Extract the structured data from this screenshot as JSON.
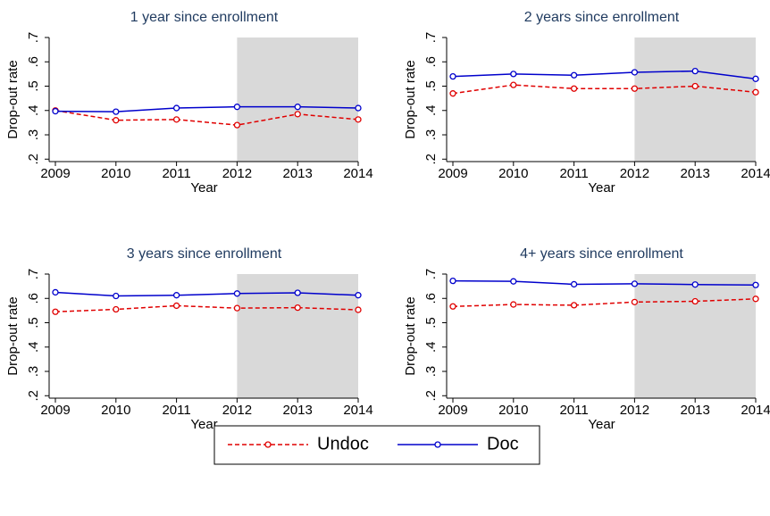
{
  "chart_data": [
    {
      "type": "line",
      "title": "1 year since enrollment",
      "xlabel": "Year",
      "ylabel": "Drop-out rate",
      "x": [
        2009,
        2010,
        2011,
        2012,
        2013,
        2014
      ],
      "xlim": [
        2009,
        2014
      ],
      "xticks": [
        2009,
        2010,
        2011,
        2012,
        2013,
        2014
      ],
      "ylim": [
        0.19,
        0.7
      ],
      "yticks": [
        {
          "value": 0.2,
          "label": ".2"
        },
        {
          "value": 0.3,
          "label": ".3"
        },
        {
          "value": 0.4,
          "label": ".4"
        },
        {
          "value": 0.5,
          "label": ".5"
        },
        {
          "value": 0.6,
          "label": ".6"
        },
        {
          "value": 0.7,
          "label": ".7"
        }
      ],
      "shade": [
        2012,
        2014
      ],
      "shade_color": "#d9d9d9",
      "series": [
        {
          "name": "Undoc",
          "color": "#e00000",
          "dashed": true,
          "values": [
            0.4,
            0.36,
            0.363,
            0.34,
            0.385,
            0.363
          ]
        },
        {
          "name": "Doc",
          "color": "#0000cc",
          "dashed": false,
          "values": [
            0.397,
            0.395,
            0.41,
            0.415,
            0.415,
            0.41
          ]
        }
      ]
    },
    {
      "type": "line",
      "title": "2 years since enrollment",
      "xlabel": "Year",
      "ylabel": "Drop-out rate",
      "x": [
        2009,
        2010,
        2011,
        2012,
        2013,
        2014
      ],
      "xlim": [
        2009,
        2014
      ],
      "xticks": [
        2009,
        2010,
        2011,
        2012,
        2013,
        2014
      ],
      "ylim": [
        0.19,
        0.7
      ],
      "yticks": [
        {
          "value": 0.2,
          "label": ".2"
        },
        {
          "value": 0.3,
          "label": ".3"
        },
        {
          "value": 0.4,
          "label": ".4"
        },
        {
          "value": 0.5,
          "label": ".5"
        },
        {
          "value": 0.6,
          "label": ".6"
        },
        {
          "value": 0.7,
          "label": ".7"
        }
      ],
      "shade": [
        2012,
        2014
      ],
      "shade_color": "#d9d9d9",
      "series": [
        {
          "name": "Undoc",
          "color": "#e00000",
          "dashed": true,
          "values": [
            0.47,
            0.505,
            0.49,
            0.49,
            0.5,
            0.475
          ]
        },
        {
          "name": "Doc",
          "color": "#0000cc",
          "dashed": false,
          "values": [
            0.54,
            0.55,
            0.545,
            0.557,
            0.562,
            0.53
          ]
        }
      ]
    },
    {
      "type": "line",
      "title": "3 years since enrollment",
      "xlabel": "Year",
      "ylabel": "Drop-out rate",
      "x": [
        2009,
        2010,
        2011,
        2012,
        2013,
        2014
      ],
      "xlim": [
        2009,
        2014
      ],
      "xticks": [
        2009,
        2010,
        2011,
        2012,
        2013,
        2014
      ],
      "ylim": [
        0.19,
        0.7
      ],
      "yticks": [
        {
          "value": 0.2,
          "label": ".2"
        },
        {
          "value": 0.3,
          "label": ".3"
        },
        {
          "value": 0.4,
          "label": ".4"
        },
        {
          "value": 0.5,
          "label": ".5"
        },
        {
          "value": 0.6,
          "label": ".6"
        },
        {
          "value": 0.7,
          "label": ".7"
        }
      ],
      "shade": [
        2012,
        2014
      ],
      "shade_color": "#d9d9d9",
      "series": [
        {
          "name": "Undoc",
          "color": "#e00000",
          "dashed": true,
          "values": [
            0.545,
            0.555,
            0.57,
            0.56,
            0.562,
            0.553
          ]
        },
        {
          "name": "Doc",
          "color": "#0000cc",
          "dashed": false,
          "values": [
            0.625,
            0.61,
            0.613,
            0.62,
            0.623,
            0.613
          ]
        }
      ]
    },
    {
      "type": "line",
      "title": "4+ years since enrollment",
      "xlabel": "Year",
      "ylabel": "Drop-out rate",
      "x": [
        2009,
        2010,
        2011,
        2012,
        2013,
        2014
      ],
      "xlim": [
        2009,
        2014
      ],
      "xticks": [
        2009,
        2010,
        2011,
        2012,
        2013,
        2014
      ],
      "ylim": [
        0.19,
        0.7
      ],
      "yticks": [
        {
          "value": 0.2,
          "label": ".2"
        },
        {
          "value": 0.3,
          "label": ".3"
        },
        {
          "value": 0.4,
          "label": ".4"
        },
        {
          "value": 0.5,
          "label": ".5"
        },
        {
          "value": 0.6,
          "label": ".6"
        },
        {
          "value": 0.7,
          "label": ".7"
        }
      ],
      "shade": [
        2012,
        2014
      ],
      "shade_color": "#d9d9d9",
      "series": [
        {
          "name": "Undoc",
          "color": "#e00000",
          "dashed": true,
          "values": [
            0.567,
            0.575,
            0.572,
            0.585,
            0.588,
            0.598
          ]
        },
        {
          "name": "Doc",
          "color": "#0000cc",
          "dashed": false,
          "values": [
            0.672,
            0.67,
            0.658,
            0.66,
            0.657,
            0.655
          ]
        }
      ]
    }
  ]
}
